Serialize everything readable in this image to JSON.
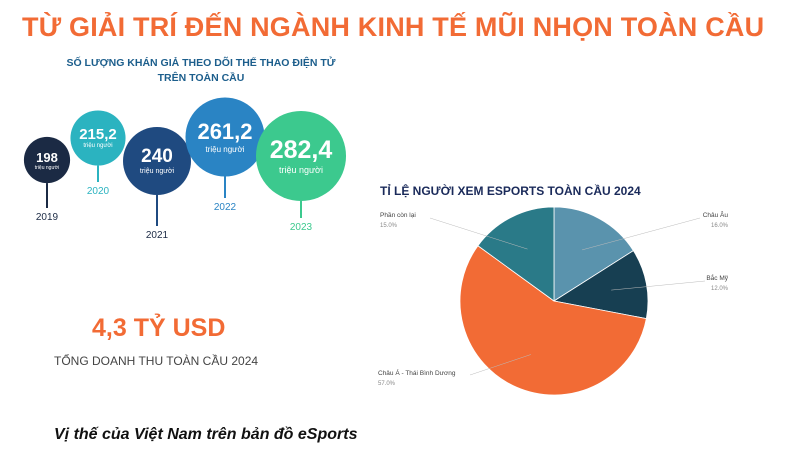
{
  "title": "TỪ GIẢI TRÍ ĐẾN NGÀNH KINH TẾ MŨI NHỌN TOÀN CẦU",
  "caption": "Vị thế của Việt Nam trên bản đồ eSports",
  "revenue": {
    "value": "4,3 TỶ USD",
    "label": "TỔNG DOANH THU TOÀN CẦU 2024"
  },
  "chart_data": [
    {
      "type": "bubble",
      "title": "SỐ LƯỢNG KHÁN GIẢ THEO DÕI THỂ THAO ĐIỆN TỬ TRÊN TOÀN CẦU",
      "unit": "triệu người",
      "categories": [
        "2019",
        "2020",
        "2021",
        "2022",
        "2023"
      ],
      "values": [
        198,
        215.2,
        240,
        261.2,
        282.4
      ],
      "value_labels": [
        "198",
        "215,2",
        "240",
        "261,2",
        "282,4"
      ],
      "colors": [
        "#1b2a44",
        "#2bb3c0",
        "#1f4a80",
        "#2a84c4",
        "#3cc98e"
      ]
    },
    {
      "type": "pie",
      "title": "TỈ LỆ NGƯỜI XEM ESPORTS TOÀN CẦU 2024",
      "slices": [
        {
          "label": "Châu Âu",
          "value": 16.0,
          "value_label": "16.0%",
          "color": "#5a93ad"
        },
        {
          "label": "Bắc Mỹ",
          "value": 12.0,
          "value_label": "12.0%",
          "color": "#173f52"
        },
        {
          "label": "Châu Á - Thái Bình Dương",
          "value": 57.0,
          "value_label": "57.0%",
          "color": "#f26b35"
        },
        {
          "label": "Phần còn lại",
          "value": 15.0,
          "value_label": "15.0%",
          "color": "#2a7a88"
        }
      ]
    }
  ]
}
